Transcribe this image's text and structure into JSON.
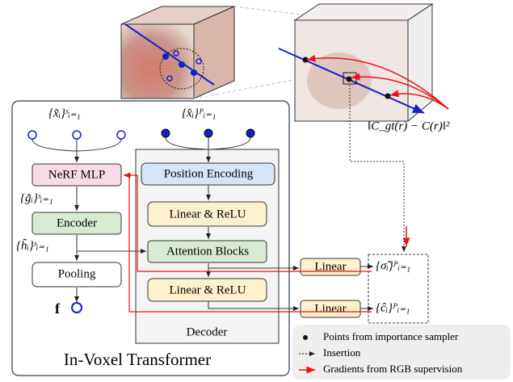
{
  "diagram": {
    "title": "In-Voxel Transformer",
    "decoder_label": "Decoder",
    "loss": "‖C_gt(r) − C(r)‖²",
    "inputs": {
      "sampled": "{x̃ᵢ}ˢᵢ₌₁",
      "query": "{x̂ᵢ}ᴾᵢ₌₁"
    },
    "features": {
      "g": "{g̃ᵢ}ˢᵢ₌₁",
      "h": "{h̃ᵢ}ˢᵢ₌₁",
      "f": "f"
    },
    "nodes": [
      "NeRF MLP",
      "Encoder",
      "Pooling",
      "Position Encoding",
      "Linear & ReLU",
      "Attention Blocks",
      "Linear & ReLU",
      "Linear",
      "Linear"
    ],
    "outputs": {
      "sigma": "{σ̂ᵢ}ᴾᵢ₌₁",
      "color": "{ĉᵢ}ᴾᵢ₌₁"
    },
    "legend": [
      "Points from importance sampler",
      "Insertion",
      "Gradients from RGB supervision"
    ]
  }
}
